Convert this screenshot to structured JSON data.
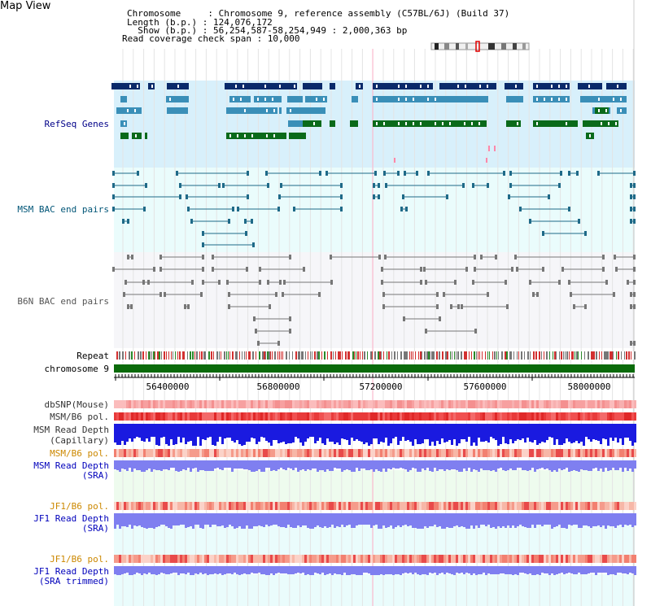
{
  "title": "Map View",
  "info": {
    "lines": [
      "Chromosome     : Chromosome 9, reference assembly (C57BL/6J) (Build 37)",
      "Length (b.p.) : 124,076,172",
      "  Show (b.p.) : 56,254,587-58,254,949 : 2,000,363 bp",
      "Read coverage check span : 10,000"
    ]
  },
  "tracks": {
    "refseq": "RefSeq Genes",
    "msm_bac": "MSM BAC end pairs",
    "b6n_bac": "B6N BAC end pairs",
    "repeat": "Repeat",
    "chromosome": "chromosome 9",
    "dbsnp": "dbSNP(Mouse)",
    "msm_b6_pol": "MSM/B6 pol.",
    "msm_read_depth_cap_1": "MSM Read Depth",
    "msm_read_depth_cap_2": "(Capillary)",
    "msm_b6_pol_2": "MSM/B6 pol.",
    "msm_read_depth_sra_1": "MSM Read Depth",
    "msm_read_depth_sra_2": "(SRA)",
    "jf1_b6_pol": "JF1/B6 pol.",
    "jf1_read_depth_1": "JF1 Read Depth",
    "jf1_read_depth_2": "(SRA)",
    "jf1_b6_pol_2": "JF1/B6 pol.",
    "jf1_trim_1": "JF1 Read Depth",
    "jf1_trim_2": "(SRA trimmed)"
  },
  "axis": {
    "ticks": [
      "56400000",
      "56800000",
      "57200000",
      "57600000",
      "58000000"
    ]
  },
  "colors": {
    "refseq_bg": "#d8f0fb",
    "bac_bg": "#eafcfc",
    "gene_dark": "#0a2a6a",
    "gene_mid": "#3a8fb8",
    "gene_green": "#0a6a1a",
    "chromosome": "#0a6a0a",
    "msm_depth": "#1a1ae0",
    "sra_depth": "#7f7ff0",
    "sra_bg": "#eefbee",
    "jf1_bg": "#eafcfc"
  }
}
